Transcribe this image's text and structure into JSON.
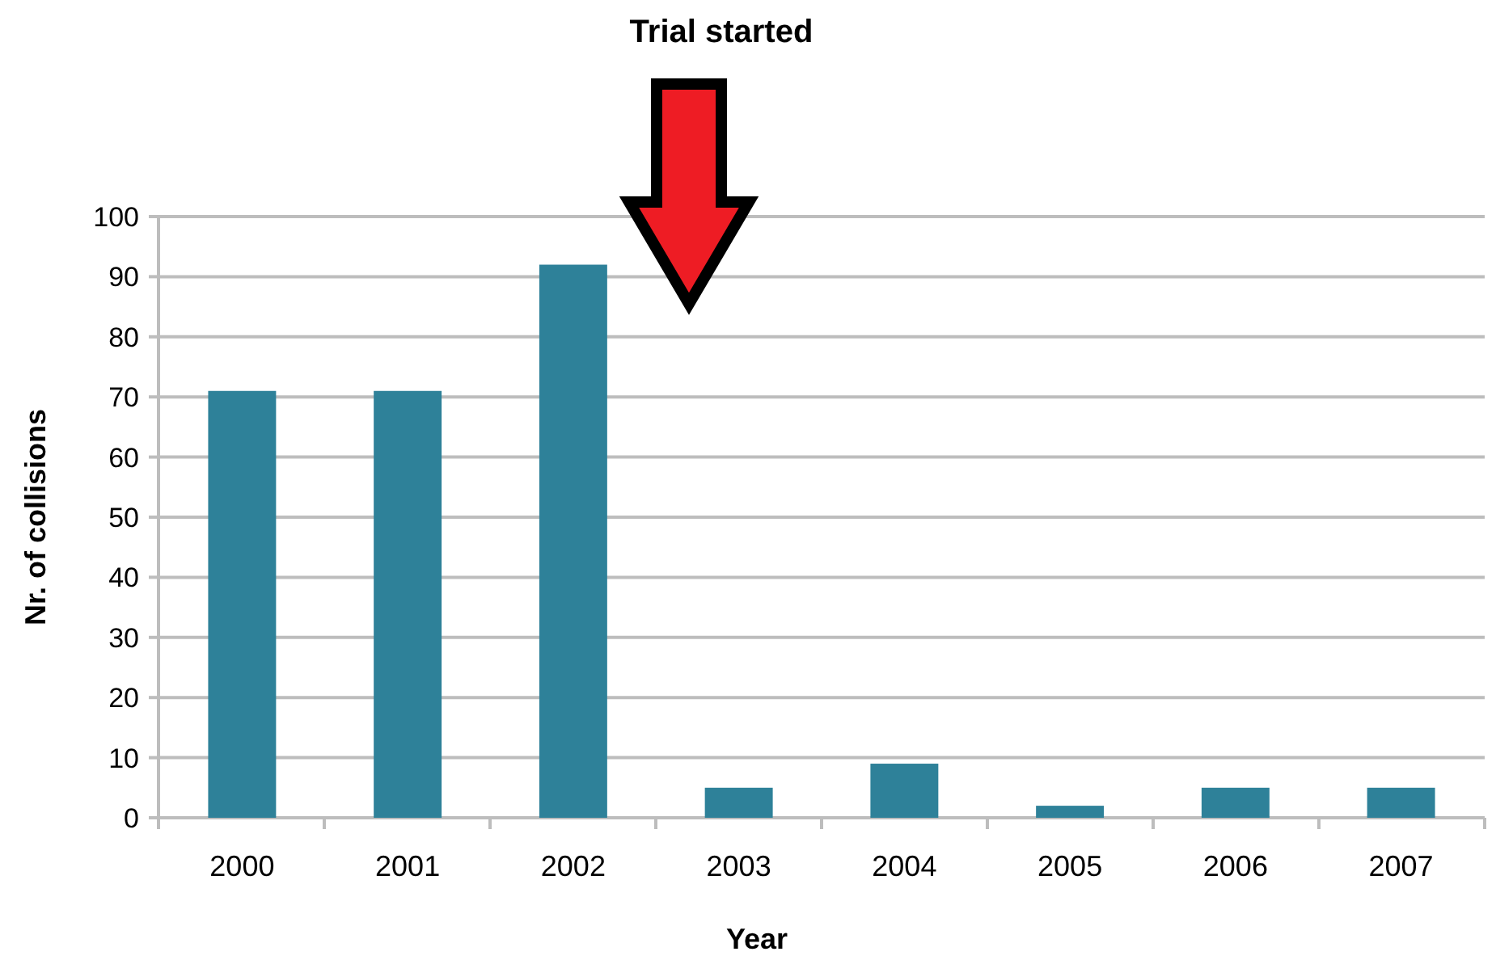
{
  "chart_data": {
    "type": "bar",
    "categories": [
      "2000",
      "2001",
      "2002",
      "2003",
      "2004",
      "2005",
      "2006",
      "2007"
    ],
    "values": [
      71,
      71,
      92,
      5,
      9,
      2,
      5,
      5
    ],
    "color": "#2e8199",
    "xlabel": "Year",
    "ylabel": "Nr. of collisions",
    "ylim": [
      0,
      100
    ],
    "yticks": [
      0,
      10,
      20,
      30,
      40,
      50,
      60,
      70,
      80,
      90,
      100
    ],
    "grid": "y",
    "annotations": [
      "Trial started"
    ]
  }
}
